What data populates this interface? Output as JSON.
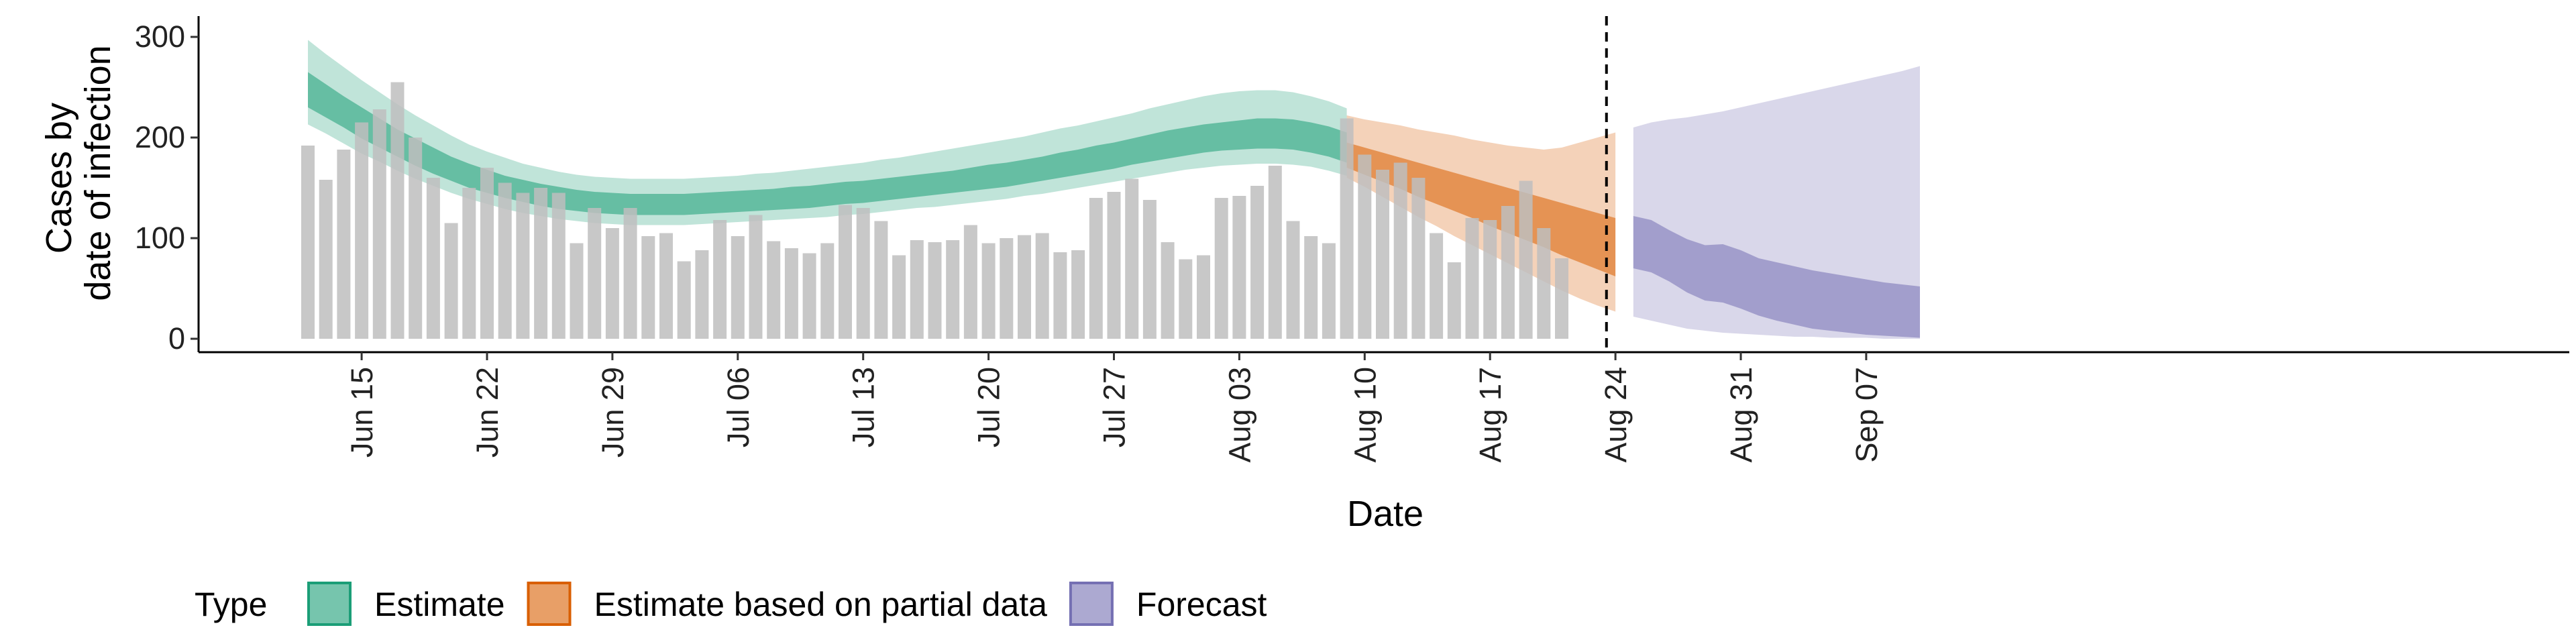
{
  "chart_data": {
    "type": "bar",
    "title": "",
    "xlabel": "Date",
    "ylabel_lines": [
      "Cases by",
      "date of infection"
    ],
    "ylim": [
      0,
      300
    ],
    "y_ticks": [
      0,
      100,
      200,
      300
    ],
    "x_tick_labels": [
      "Jun 15",
      "Jun 22",
      "Jun 29",
      "Jul 06",
      "Jul 13",
      "Jul 20",
      "Jul 27",
      "Aug 03",
      "Aug 10",
      "Aug 17",
      "Aug 24",
      "Aug 31",
      "Sep 07"
    ],
    "x_tick_dayindex": [
      3,
      10,
      17,
      24,
      31,
      38,
      45,
      52,
      59,
      66,
      73,
      80,
      87
    ],
    "x_range_dayindex": [
      -4,
      89
    ],
    "first_bar_date": "Jun 12",
    "bars": {
      "color": "#bebebe",
      "values": [
        192,
        158,
        188,
        215,
        228,
        255,
        200,
        160,
        115,
        150,
        170,
        155,
        145,
        150,
        145,
        95,
        130,
        110,
        130,
        102,
        105,
        77,
        88,
        118,
        102,
        123,
        97,
        90,
        85,
        95,
        133,
        130,
        117,
        83,
        98,
        96,
        98,
        113,
        95,
        100,
        103,
        105,
        86,
        88,
        140,
        146,
        159,
        138,
        96,
        79,
        83,
        140,
        142,
        152,
        172,
        117,
        102,
        95,
        219,
        183,
        168,
        175,
        160,
        105,
        76,
        120,
        118,
        132,
        157,
        110,
        80
      ]
    },
    "estimate_split_dayindex": 58,
    "series": [
      {
        "name": "Estimate",
        "color": "#1b9e77",
        "start_dayindex": 0,
        "median": [
          248,
          237,
          226,
          215,
          205,
          195,
          186,
          177,
          169,
          162,
          156,
          151,
          147,
          143,
          140,
          137,
          135,
          134,
          133,
          133,
          133,
          133,
          134,
          135,
          136,
          137,
          138,
          140,
          141,
          143,
          145,
          146,
          148,
          150,
          152,
          154,
          156,
          158,
          161,
          163,
          166,
          169,
          172,
          175,
          179,
          182,
          186,
          189,
          193,
          196,
          199,
          201,
          203,
          204,
          204,
          203,
          200,
          196,
          190
        ],
        "inner": [
          [
            230,
            265
          ],
          [
            220,
            253
          ],
          [
            210,
            241
          ],
          [
            199,
            230
          ],
          [
            190,
            219
          ],
          [
            181,
            208
          ],
          [
            172,
            199
          ],
          [
            164,
            190
          ],
          [
            157,
            181
          ],
          [
            150,
            174
          ],
          [
            145,
            168
          ],
          [
            140,
            162
          ],
          [
            136,
            158
          ],
          [
            132,
            154
          ],
          [
            129,
            151
          ],
          [
            127,
            148
          ],
          [
            125,
            146
          ],
          [
            124,
            145
          ],
          [
            123,
            144
          ],
          [
            123,
            144
          ],
          [
            123,
            144
          ],
          [
            123,
            144
          ],
          [
            124,
            145
          ],
          [
            125,
            146
          ],
          [
            126,
            147
          ],
          [
            127,
            148
          ],
          [
            128,
            149
          ],
          [
            129,
            151
          ],
          [
            130,
            152
          ],
          [
            132,
            154
          ],
          [
            134,
            156
          ],
          [
            135,
            157
          ],
          [
            137,
            159
          ],
          [
            139,
            161
          ],
          [
            141,
            163
          ],
          [
            143,
            165
          ],
          [
            145,
            167
          ],
          [
            147,
            170
          ],
          [
            149,
            173
          ],
          [
            151,
            175
          ],
          [
            154,
            178
          ],
          [
            157,
            181
          ],
          [
            160,
            185
          ],
          [
            163,
            188
          ],
          [
            166,
            192
          ],
          [
            169,
            195
          ],
          [
            173,
            199
          ],
          [
            176,
            203
          ],
          [
            179,
            207
          ],
          [
            182,
            210
          ],
          [
            185,
            213
          ],
          [
            187,
            215
          ],
          [
            188,
            217
          ],
          [
            189,
            219
          ],
          [
            189,
            219
          ],
          [
            188,
            218
          ],
          [
            185,
            215
          ],
          [
            181,
            211
          ],
          [
            175,
            205
          ]
        ],
        "outer": [
          [
            213,
            297
          ],
          [
            204,
            283
          ],
          [
            194,
            270
          ],
          [
            184,
            257
          ],
          [
            176,
            245
          ],
          [
            167,
            233
          ],
          [
            159,
            222
          ],
          [
            152,
            212
          ],
          [
            145,
            202
          ],
          [
            139,
            193
          ],
          [
            134,
            186
          ],
          [
            129,
            180
          ],
          [
            125,
            174
          ],
          [
            122,
            170
          ],
          [
            119,
            166
          ],
          [
            117,
            163
          ],
          [
            115,
            161
          ],
          [
            114,
            160
          ],
          [
            113,
            159
          ],
          [
            113,
            159
          ],
          [
            113,
            159
          ],
          [
            113,
            159
          ],
          [
            114,
            160
          ],
          [
            115,
            161
          ],
          [
            116,
            162
          ],
          [
            117,
            164
          ],
          [
            118,
            165
          ],
          [
            119,
            167
          ],
          [
            120,
            169
          ],
          [
            121,
            171
          ],
          [
            123,
            173
          ],
          [
            124,
            175
          ],
          [
            126,
            178
          ],
          [
            128,
            180
          ],
          [
            130,
            183
          ],
          [
            131,
            186
          ],
          [
            133,
            189
          ],
          [
            135,
            192
          ],
          [
            137,
            195
          ],
          [
            139,
            198
          ],
          [
            142,
            201
          ],
          [
            144,
            205
          ],
          [
            147,
            209
          ],
          [
            150,
            212
          ],
          [
            153,
            216
          ],
          [
            156,
            220
          ],
          [
            159,
            224
          ],
          [
            162,
            229
          ],
          [
            165,
            233
          ],
          [
            168,
            237
          ],
          [
            170,
            241
          ],
          [
            172,
            244
          ],
          [
            173,
            246
          ],
          [
            174,
            247
          ],
          [
            174,
            247
          ],
          [
            173,
            245
          ],
          [
            171,
            241
          ],
          [
            167,
            236
          ],
          [
            162,
            229
          ]
        ]
      },
      {
        "name": "Estimate based on partial data",
        "color": "#d95f02",
        "start_dayindex": 58,
        "median": [
          182,
          176,
          170,
          164,
          158,
          152,
          146,
          140,
          134,
          128,
          122,
          116,
          110,
          104,
          98,
          92
        ],
        "inner": [
          [
            170,
            195
          ],
          [
            163,
            190
          ],
          [
            156,
            185
          ],
          [
            149,
            180
          ],
          [
            141,
            175
          ],
          [
            134,
            170
          ],
          [
            127,
            165
          ],
          [
            120,
            160
          ],
          [
            112,
            155
          ],
          [
            105,
            150
          ],
          [
            98,
            145
          ],
          [
            91,
            140
          ],
          [
            83,
            135
          ],
          [
            76,
            130
          ],
          [
            69,
            125
          ],
          [
            62,
            120
          ]
        ],
        "outer": [
          [
            160,
            222
          ],
          [
            151,
            218
          ],
          [
            141,
            215
          ],
          [
            131,
            212
          ],
          [
            121,
            208
          ],
          [
            112,
            205
          ],
          [
            102,
            202
          ],
          [
            93,
            198
          ],
          [
            84,
            195
          ],
          [
            75,
            192
          ],
          [
            66,
            190
          ],
          [
            57,
            188
          ],
          [
            48,
            190
          ],
          [
            40,
            195
          ],
          [
            33,
            200
          ],
          [
            27,
            205
          ]
        ]
      },
      {
        "name": "Forecast",
        "color": "#7570b3",
        "start_dayindex": 74,
        "median": [
          95,
          92,
          85,
          75,
          68,
          66,
          60,
          53,
          48,
          44,
          40,
          37,
          34,
          31,
          29,
          27,
          26
        ],
        "inner": [
          [
            70,
            122
          ],
          [
            66,
            118
          ],
          [
            57,
            108
          ],
          [
            46,
            99
          ],
          [
            38,
            93
          ],
          [
            36,
            94
          ],
          [
            30,
            88
          ],
          [
            23,
            80
          ],
          [
            18,
            76
          ],
          [
            14,
            72
          ],
          [
            10,
            68
          ],
          [
            8,
            65
          ],
          [
            6,
            62
          ],
          [
            4,
            59
          ],
          [
            3,
            56
          ],
          [
            2,
            54
          ],
          [
            1,
            52
          ]
        ],
        "outer": [
          [
            22,
            210
          ],
          [
            18,
            215
          ],
          [
            14,
            218
          ],
          [
            10,
            220
          ],
          [
            8,
            223
          ],
          [
            6,
            226
          ],
          [
            5,
            230
          ],
          [
            4,
            234
          ],
          [
            3,
            238
          ],
          [
            2,
            242
          ],
          [
            2,
            246
          ],
          [
            1,
            250
          ],
          [
            1,
            254
          ],
          [
            1,
            258
          ],
          [
            0,
            262
          ],
          [
            0,
            266
          ],
          [
            0,
            271
          ]
        ]
      }
    ],
    "vline_dayindex": 72.5,
    "legend": {
      "title": "Type",
      "position": "bottom",
      "items": [
        {
          "label": "Estimate",
          "color": "#1b9e77"
        },
        {
          "label": "Estimate based on partial data",
          "color": "#d95f02"
        },
        {
          "label": "Forecast",
          "color": "#7570b3"
        }
      ]
    },
    "grid": false
  }
}
